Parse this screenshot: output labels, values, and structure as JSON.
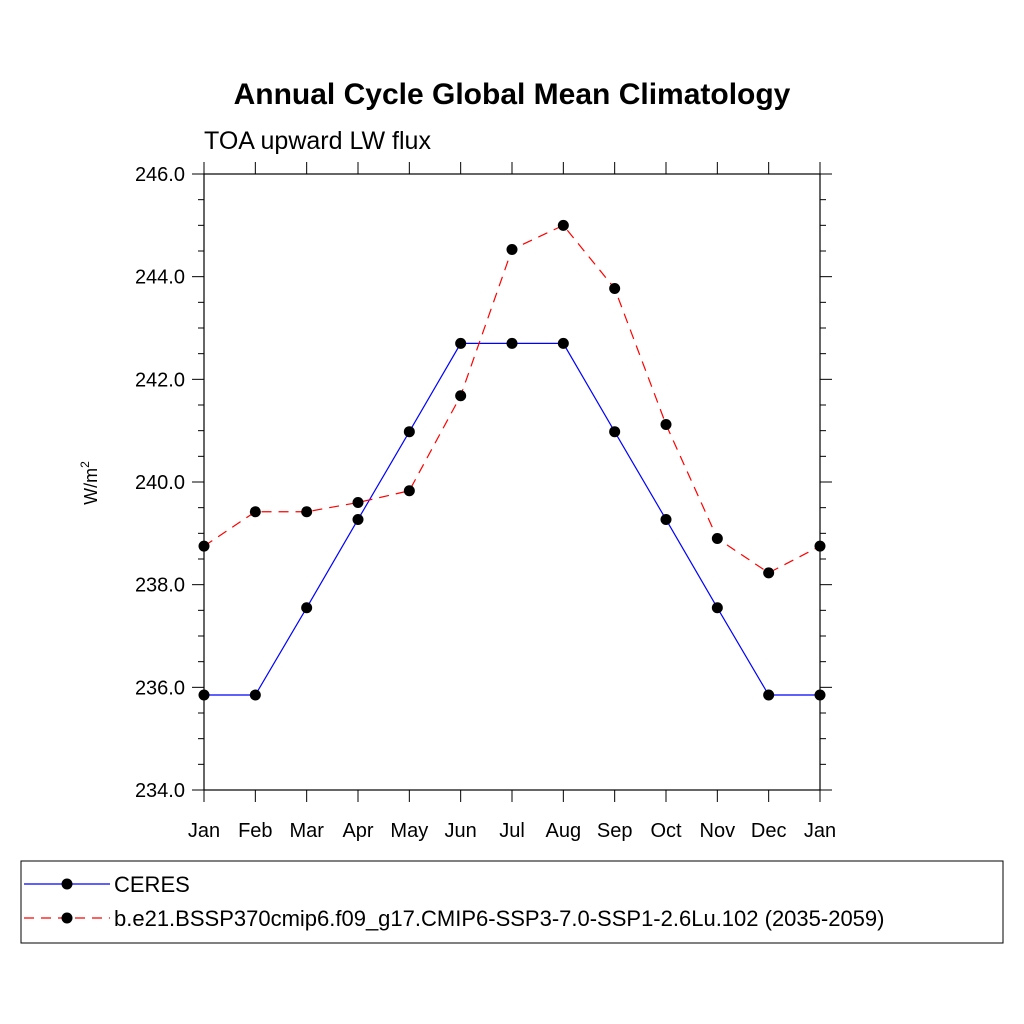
{
  "chart_data": {
    "type": "line",
    "title": "Annual Cycle Global Mean Climatology",
    "subtitle": "TOA upward LW flux",
    "ylabel": "W/m",
    "ylabel_superscript": "2",
    "xlabel": "",
    "categories": [
      "Jan",
      "Feb",
      "Mar",
      "Apr",
      "May",
      "Jun",
      "Jul",
      "Aug",
      "Sep",
      "Oct",
      "Nov",
      "Dec",
      "Jan"
    ],
    "ylim": [
      234.0,
      246.0
    ],
    "yticks": [
      "234.0",
      "236.0",
      "238.0",
      "240.0",
      "242.0",
      "244.0",
      "246.0"
    ],
    "grid": false,
    "legend_position": "bottom",
    "series": [
      {
        "name": "CERES",
        "color": "#0000ff",
        "dash": "solid",
        "marker": "filled-circle",
        "values": [
          235.85,
          235.85,
          237.55,
          239.27,
          240.98,
          242.7,
          242.7,
          242.7,
          240.98,
          239.27,
          237.55,
          235.85,
          235.85
        ]
      },
      {
        "name": "b.e21.BSSP370cmip6.f09_g17.CMIP6-SSP3-7.0-SSP1-2.6Lu.102 (2035-2059)",
        "color": "#ff0000",
        "dash": "dashed",
        "marker": "filled-circle",
        "values": [
          238.75,
          239.42,
          239.42,
          239.6,
          239.83,
          241.68,
          244.53,
          245.0,
          243.77,
          241.12,
          238.9,
          238.23,
          238.75
        ]
      }
    ]
  }
}
